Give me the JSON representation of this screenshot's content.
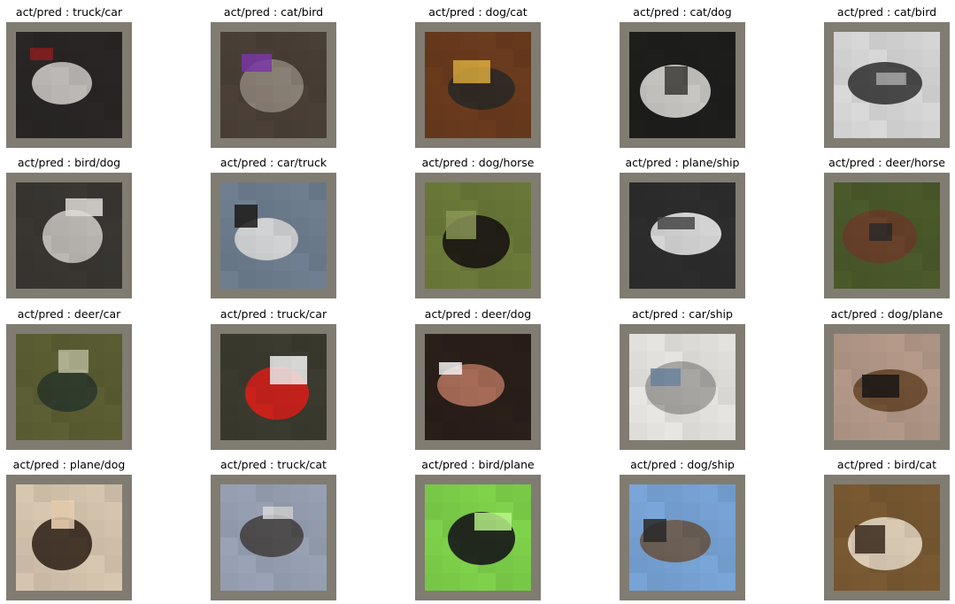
{
  "panels": [
    {
      "title": "act/pred : truck/car",
      "actual": "truck",
      "predicted": "car",
      "bg": "#2a2626",
      "subject": "#c9c4c1",
      "accent": "#8a1f1f"
    },
    {
      "title": "act/pred : cat/bird",
      "actual": "cat",
      "predicted": "bird",
      "bg": "#4a4037",
      "subject": "#8f857c",
      "accent": "#7a3aa8"
    },
    {
      "title": "act/pred : dog/cat",
      "actual": "dog",
      "predicted": "cat",
      "bg": "#6b3b1e",
      "subject": "#2f2a26",
      "accent": "#e0b040"
    },
    {
      "title": "act/pred : cat/dog",
      "actual": "cat",
      "predicted": "dog",
      "bg": "#1e1e1c",
      "subject": "#d7d5d1",
      "accent": "#3b3a36"
    },
    {
      "title": "act/pred : cat/bird",
      "actual": "cat",
      "predicted": "bird",
      "bg": "#d9d9d9",
      "subject": "#3d3d3d",
      "accent": "#a8a8a8"
    },
    {
      "title": "act/pred : bird/dog",
      "actual": "bird",
      "predicted": "dog",
      "bg": "#3a3733",
      "subject": "#c9c5c1",
      "accent": "#e2ded9"
    },
    {
      "title": "act/pred : car/truck",
      "actual": "car",
      "predicted": "truck",
      "bg": "#6f7f91",
      "subject": "#d9d9d9",
      "accent": "#1f1a18"
    },
    {
      "title": "act/pred : dog/horse",
      "actual": "dog",
      "predicted": "horse",
      "bg": "#6b7a39",
      "subject": "#1b1714",
      "accent": "#8d9a59"
    },
    {
      "title": "act/pred : plane/ship",
      "actual": "plane",
      "predicted": "ship",
      "bg": "#2d2d2d",
      "subject": "#e6e6e6",
      "accent": "#4a4a4a"
    },
    {
      "title": "act/pred : deer/horse",
      "actual": "deer",
      "predicted": "horse",
      "bg": "#4b5a2b",
      "subject": "#6a3f2a",
      "accent": "#2b2a2a"
    },
    {
      "title": "act/pred : deer/car",
      "actual": "deer",
      "predicted": "car",
      "bg": "#5c5f33",
      "subject": "#2e3b2d",
      "accent": "#bfc0a2"
    },
    {
      "title": "act/pred : truck/car",
      "actual": "truck",
      "predicted": "car",
      "bg": "#3b3b2f",
      "subject": "#d7221b",
      "accent": "#f2f2f2"
    },
    {
      "title": "act/pred : deer/dog",
      "actual": "deer",
      "predicted": "dog",
      "bg": "#2b1f1a",
      "subject": "#b0725c",
      "accent": "#f2f2f2"
    },
    {
      "title": "act/pred : car/ship",
      "actual": "car",
      "predicted": "ship",
      "bg": "#e7e6e2",
      "subject": "#a4a39f",
      "accent": "#6f87a0"
    },
    {
      "title": "act/pred : dog/plane",
      "actual": "dog",
      "predicted": "plane",
      "bg": "#b59a8a",
      "subject": "#6b4b2f",
      "accent": "#1a1716"
    },
    {
      "title": "act/pred : plane/dog",
      "actual": "plane",
      "predicted": "dog",
      "bg": "#d8c7b0",
      "subject": "#3a2a1f",
      "accent": "#f2d7b7"
    },
    {
      "title": "act/pred : truck/cat",
      "actual": "truck",
      "predicted": "cat",
      "bg": "#9aa3b6",
      "subject": "#4a4747",
      "accent": "#d9d9d9"
    },
    {
      "title": "act/pred : bird/plane",
      "actual": "bird",
      "predicted": "plane",
      "bg": "#7fd34b",
      "subject": "#1b1b1b",
      "accent": "#b9f38a"
    },
    {
      "title": "act/pred : dog/ship",
      "actual": "dog",
      "predicted": "ship",
      "bg": "#79a5d8",
      "subject": "#6b5a4c",
      "accent": "#2a2a2a"
    },
    {
      "title": "act/pred : bird/cat",
      "actual": "bird",
      "predicted": "cat",
      "bg": "#7a5a33",
      "subject": "#e3d5c0",
      "accent": "#3b2b1f"
    }
  ]
}
